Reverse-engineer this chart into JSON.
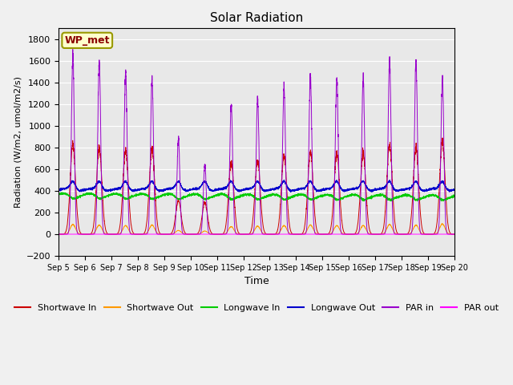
{
  "title": "Solar Radiation",
  "ylabel": "Radiation (W/m2, umol/m2/s)",
  "xlabel": "Time",
  "ylim": [
    -200,
    1900
  ],
  "yticks": [
    -200,
    0,
    200,
    400,
    600,
    800,
    1000,
    1200,
    1400,
    1600,
    1800
  ],
  "n_days": 15,
  "points_per_day": 288,
  "series_colors": {
    "shortwave_in": "#cc0000",
    "shortwave_out": "#ff9900",
    "longwave_in": "#00cc00",
    "longwave_out": "#0000cc",
    "par_in": "#9900cc",
    "par_out": "#ff00ff"
  },
  "legend_labels": [
    "Shortwave In",
    "Shortwave Out",
    "Longwave In",
    "Longwave Out",
    "PAR in",
    "PAR out"
  ],
  "wp_met_label": "WP_met",
  "background_color": "#e8e8e8",
  "figure_background": "#f0f0f0",
  "grid_color": "#ffffff",
  "par_peaks": [
    1650,
    1590,
    1500,
    1430,
    870,
    640,
    1200,
    1240,
    1350,
    1470,
    1450,
    1450,
    1610,
    1590,
    1430
  ],
  "sw_peaks": [
    830,
    800,
    770,
    790,
    310,
    290,
    650,
    680,
    730,
    760,
    750,
    750,
    830,
    800,
    860
  ],
  "sw_out_peaks": [
    90,
    85,
    80,
    85,
    35,
    30,
    70,
    75,
    80,
    85,
    80,
    80,
    90,
    85,
    95
  ],
  "lw_in_base": 360,
  "lw_out_base": 410
}
